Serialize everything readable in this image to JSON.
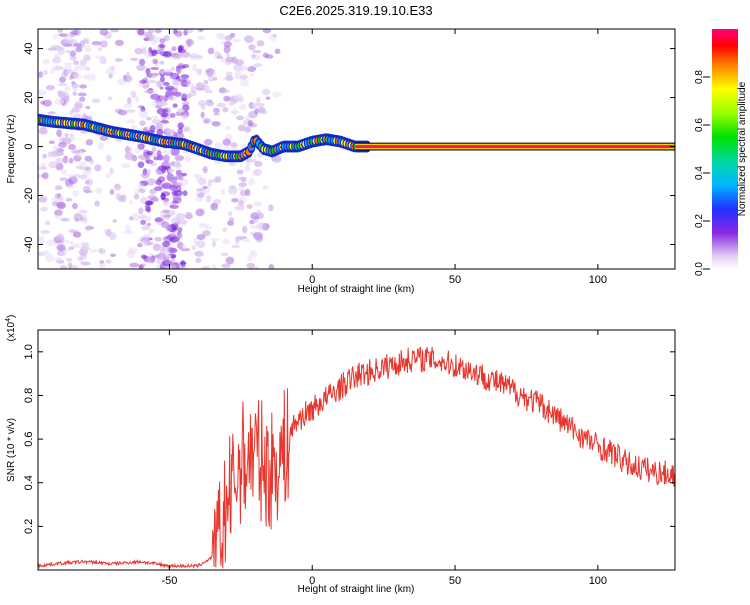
{
  "title": "C2E6.2025.319.19.10.E33",
  "chart_data": [
    {
      "type": "heatmap",
      "title": "C2E6.2025.319.19.10.E33",
      "xlabel": "Height of straight line (km)",
      "ylabel": "Frequency (Hz)",
      "xlim": [
        -96,
        127
      ],
      "ylim": [
        -50,
        48
      ],
      "xticks": [
        -50,
        0,
        50,
        100
      ],
      "yticks": [
        -40,
        -20,
        0,
        20,
        40
      ],
      "colorbar": {
        "label": "Normalized spectral amplitude",
        "range": [
          0,
          1
        ],
        "ticks": [
          0.0,
          0.2,
          0.4,
          0.6,
          0.8
        ]
      },
      "ridge": {
        "name": "dominant frequency trace",
        "x": [
          -96,
          -90,
          -80,
          -70,
          -60,
          -52,
          -45,
          -40,
          -35,
          -30,
          -25,
          -22,
          -20,
          -17,
          -14,
          -10,
          -5,
          0,
          5,
          10,
          15,
          20,
          40,
          60,
          80,
          100,
          127
        ],
        "y": [
          11,
          10,
          9,
          6,
          4,
          2,
          1,
          -1,
          -3,
          -4,
          -4,
          -2,
          3,
          -1,
          -2,
          0,
          0,
          2,
          3,
          2,
          0,
          0,
          0,
          0,
          0,
          0,
          0
        ]
      }
    },
    {
      "type": "line",
      "xlabel": "Height of straight line (km)",
      "ylabel": "SNR (10 * v/v)",
      "yscale_label": "(x10",
      "yscale_exp": "4",
      "xlim": [
        -96,
        127
      ],
      "ylim": [
        0.0,
        1.1
      ],
      "xticks": [
        -50,
        0,
        50,
        100
      ],
      "yticks": [
        0.2,
        0.4,
        0.6,
        0.8,
        1.0
      ],
      "series": [
        {
          "color": "#e8362e",
          "x": [
            -96,
            -90,
            -80,
            -70,
            -60,
            -50,
            -40,
            -35,
            -30,
            -25,
            -20,
            -15,
            -10,
            -5,
            0,
            5,
            10,
            15,
            20,
            25,
            30,
            35,
            40,
            45,
            50,
            55,
            60,
            65,
            70,
            75,
            80,
            85,
            90,
            95,
            100,
            105,
            110,
            115,
            120,
            127
          ],
          "y": [
            0.02,
            0.03,
            0.04,
            0.03,
            0.04,
            0.02,
            0.02,
            0.06,
            0.35,
            0.55,
            0.6,
            0.5,
            0.6,
            0.7,
            0.75,
            0.8,
            0.85,
            0.9,
            0.92,
            0.94,
            0.96,
            0.98,
            0.98,
            0.97,
            0.95,
            0.93,
            0.9,
            0.87,
            0.84,
            0.8,
            0.77,
            0.72,
            0.67,
            0.62,
            0.58,
            0.55,
            0.5,
            0.48,
            0.46,
            0.45
          ]
        }
      ]
    }
  ]
}
